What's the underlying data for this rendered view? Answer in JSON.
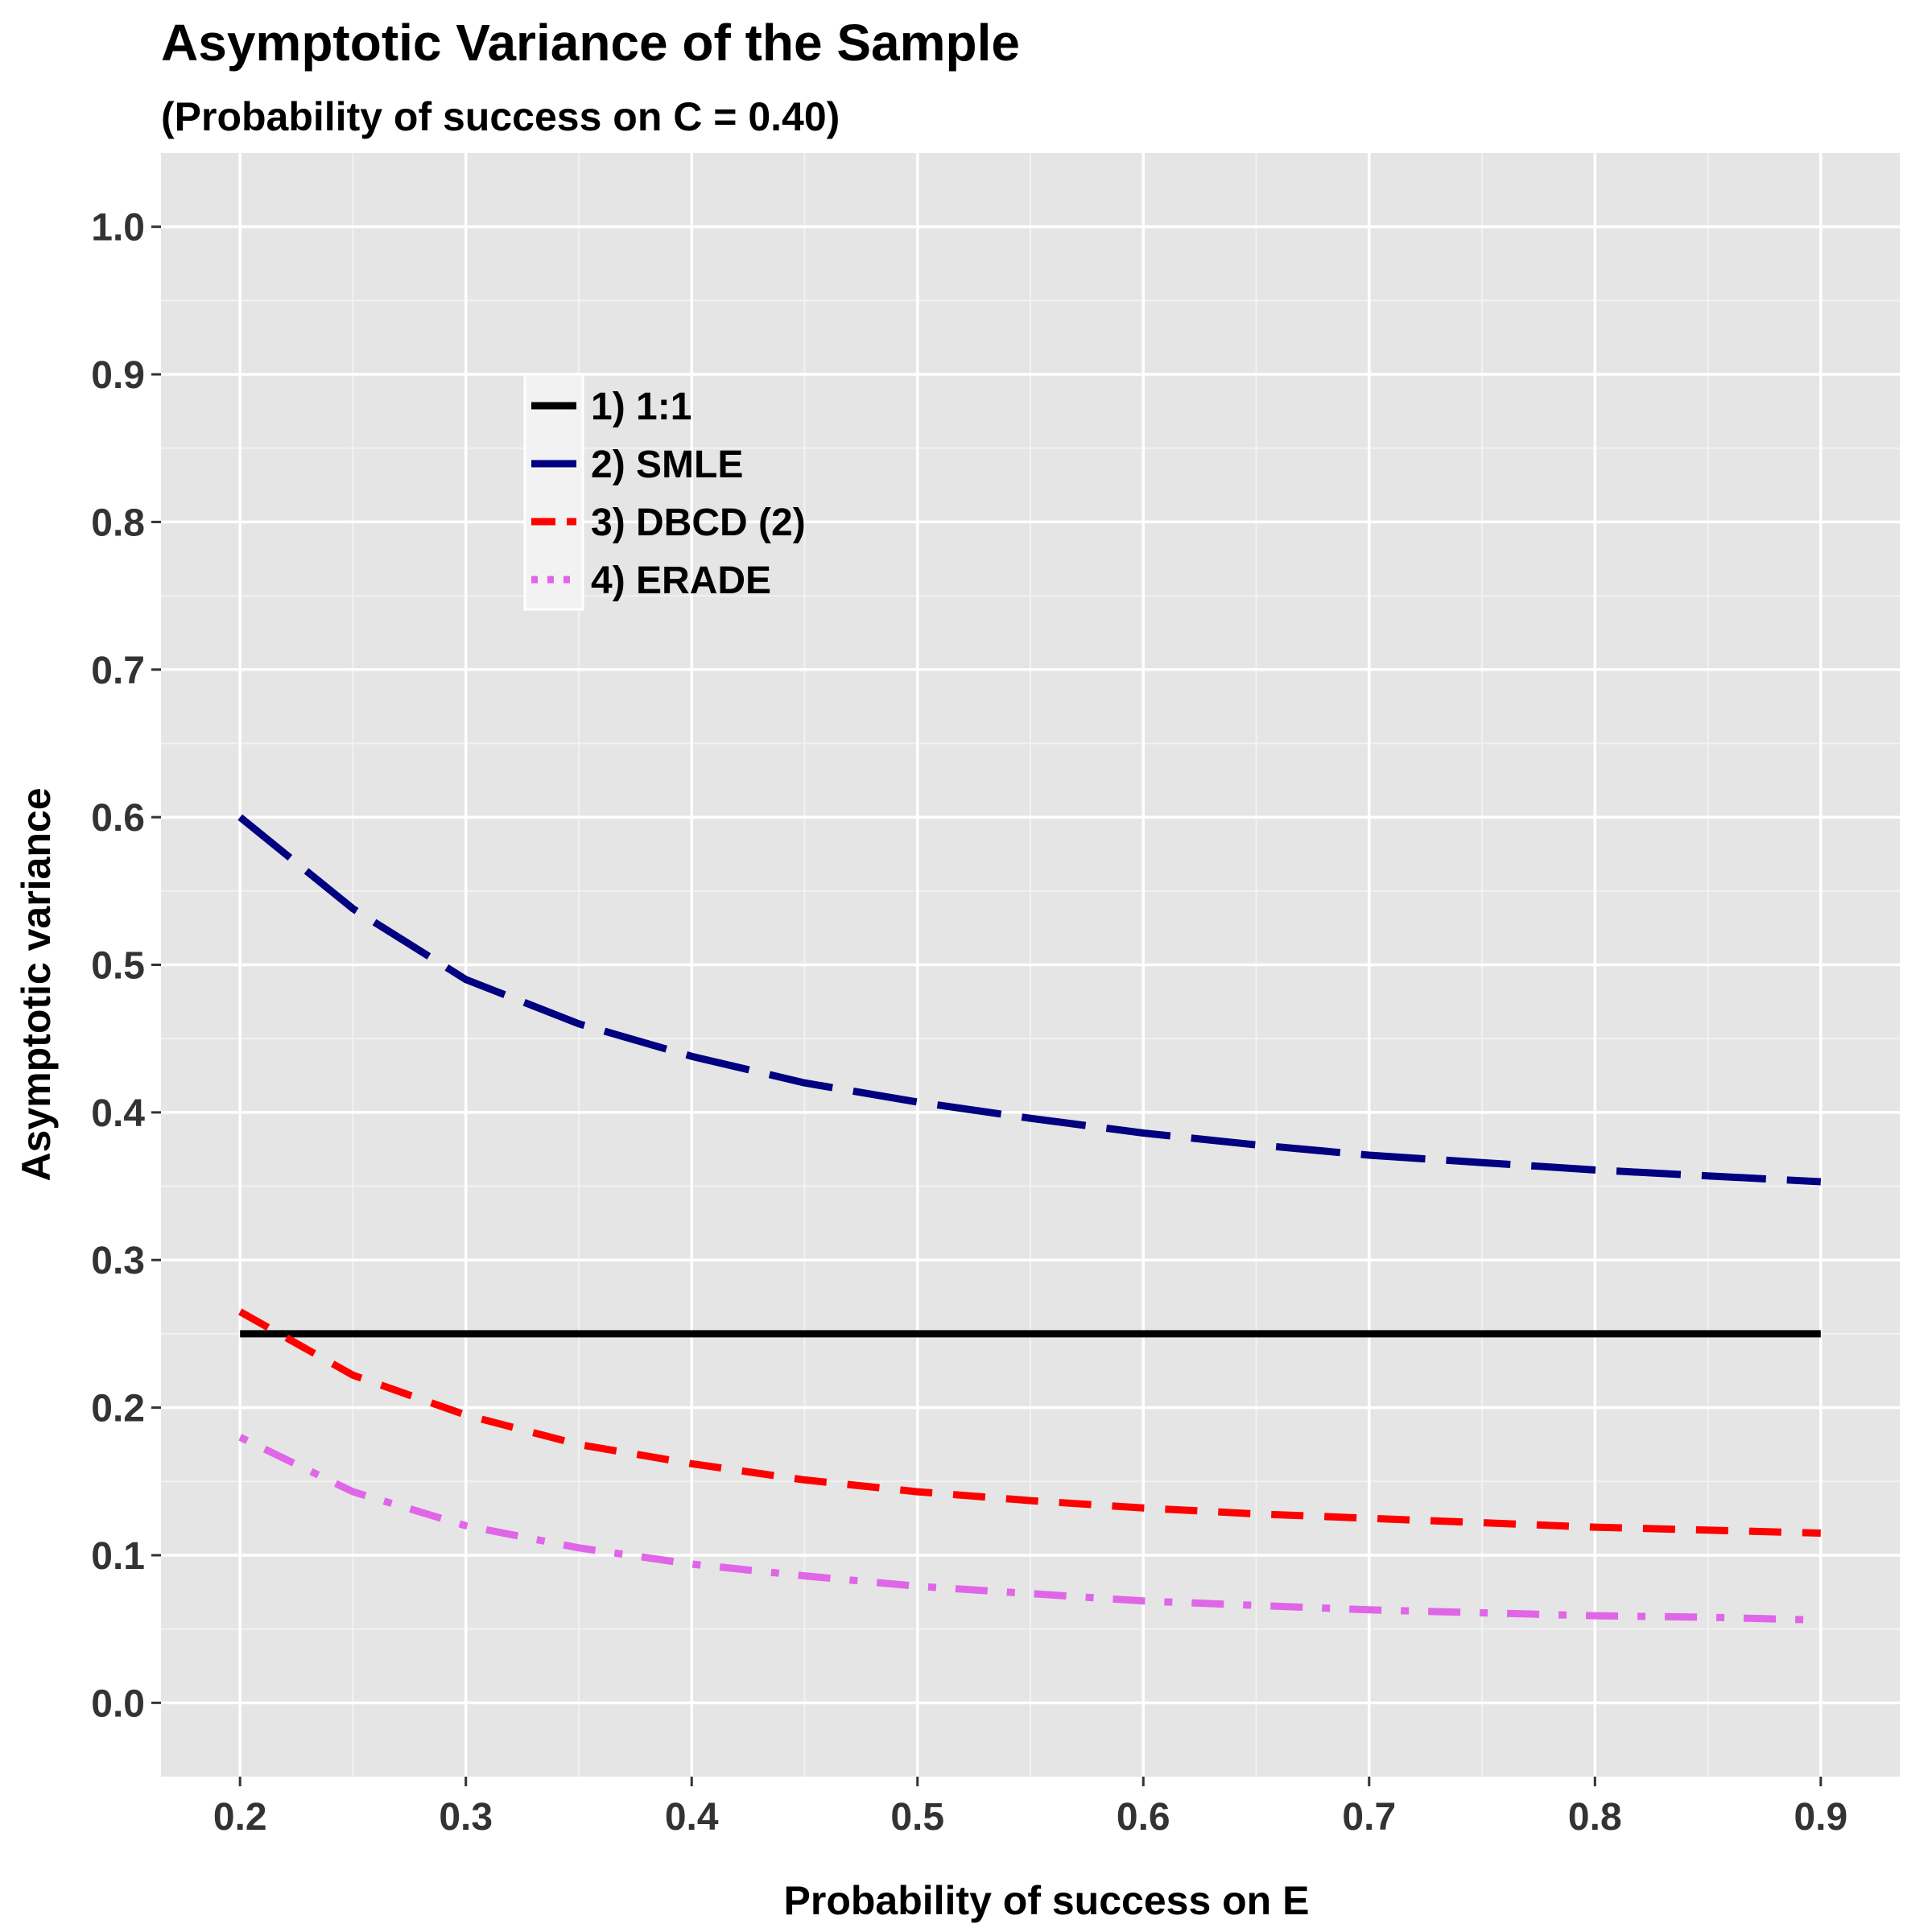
{
  "chart_data": {
    "type": "line",
    "title": "Asymptotic Variance of the Sample",
    "subtitle": "(Probability of success on C = 0.40)",
    "xlabel": "Probability of success on E",
    "ylabel": "Asymptotic variance",
    "xlim": [
      0.165,
      0.935
    ],
    "ylim": [
      -0.05,
      1.05
    ],
    "x_ticks": [
      "0.2",
      "0.3",
      "0.4",
      "0.5",
      "0.6",
      "0.7",
      "0.8",
      "0.9"
    ],
    "y_ticks": [
      "0.0",
      "0.1",
      "0.2",
      "0.3",
      "0.4",
      "0.5",
      "0.6",
      "0.7",
      "0.8",
      "0.9",
      "1.0"
    ],
    "grid": true,
    "legend_position": "top-left-inside",
    "x": [
      0.2,
      0.25,
      0.3,
      0.35,
      0.4,
      0.45,
      0.5,
      0.55,
      0.6,
      0.65,
      0.7,
      0.75,
      0.8,
      0.85,
      0.9
    ],
    "series": [
      {
        "name": "1) 1:1",
        "color": "#000000",
        "linetype": "solid",
        "values": [
          0.25,
          0.25,
          0.25,
          0.25,
          0.25,
          0.25,
          0.25,
          0.25,
          0.25,
          0.25,
          0.25,
          0.25,
          0.25,
          0.25,
          0.25
        ]
      },
      {
        "name": "2) SMLE",
        "color": "#000080",
        "linetype": "longdash",
        "values": [
          0.6,
          0.538,
          0.49,
          0.46,
          0.438,
          0.42,
          0.407,
          0.396,
          0.386,
          0.378,
          0.371,
          0.366,
          0.361,
          0.357,
          0.353
        ]
      },
      {
        "name": "3) DBCD (2)",
        "color": "#FF0000",
        "linetype": "dashed",
        "values": [
          0.265,
          0.222,
          0.195,
          0.175,
          0.162,
          0.151,
          0.143,
          0.137,
          0.132,
          0.128,
          0.125,
          0.122,
          0.119,
          0.117,
          0.115
        ]
      },
      {
        "name": "4) ERADE",
        "color": "#E066E8",
        "linetype": "dotdash",
        "values": [
          0.18,
          0.143,
          0.12,
          0.105,
          0.094,
          0.086,
          0.079,
          0.074,
          0.069,
          0.066,
          0.063,
          0.061,
          0.059,
          0.058,
          0.056
        ]
      }
    ]
  }
}
